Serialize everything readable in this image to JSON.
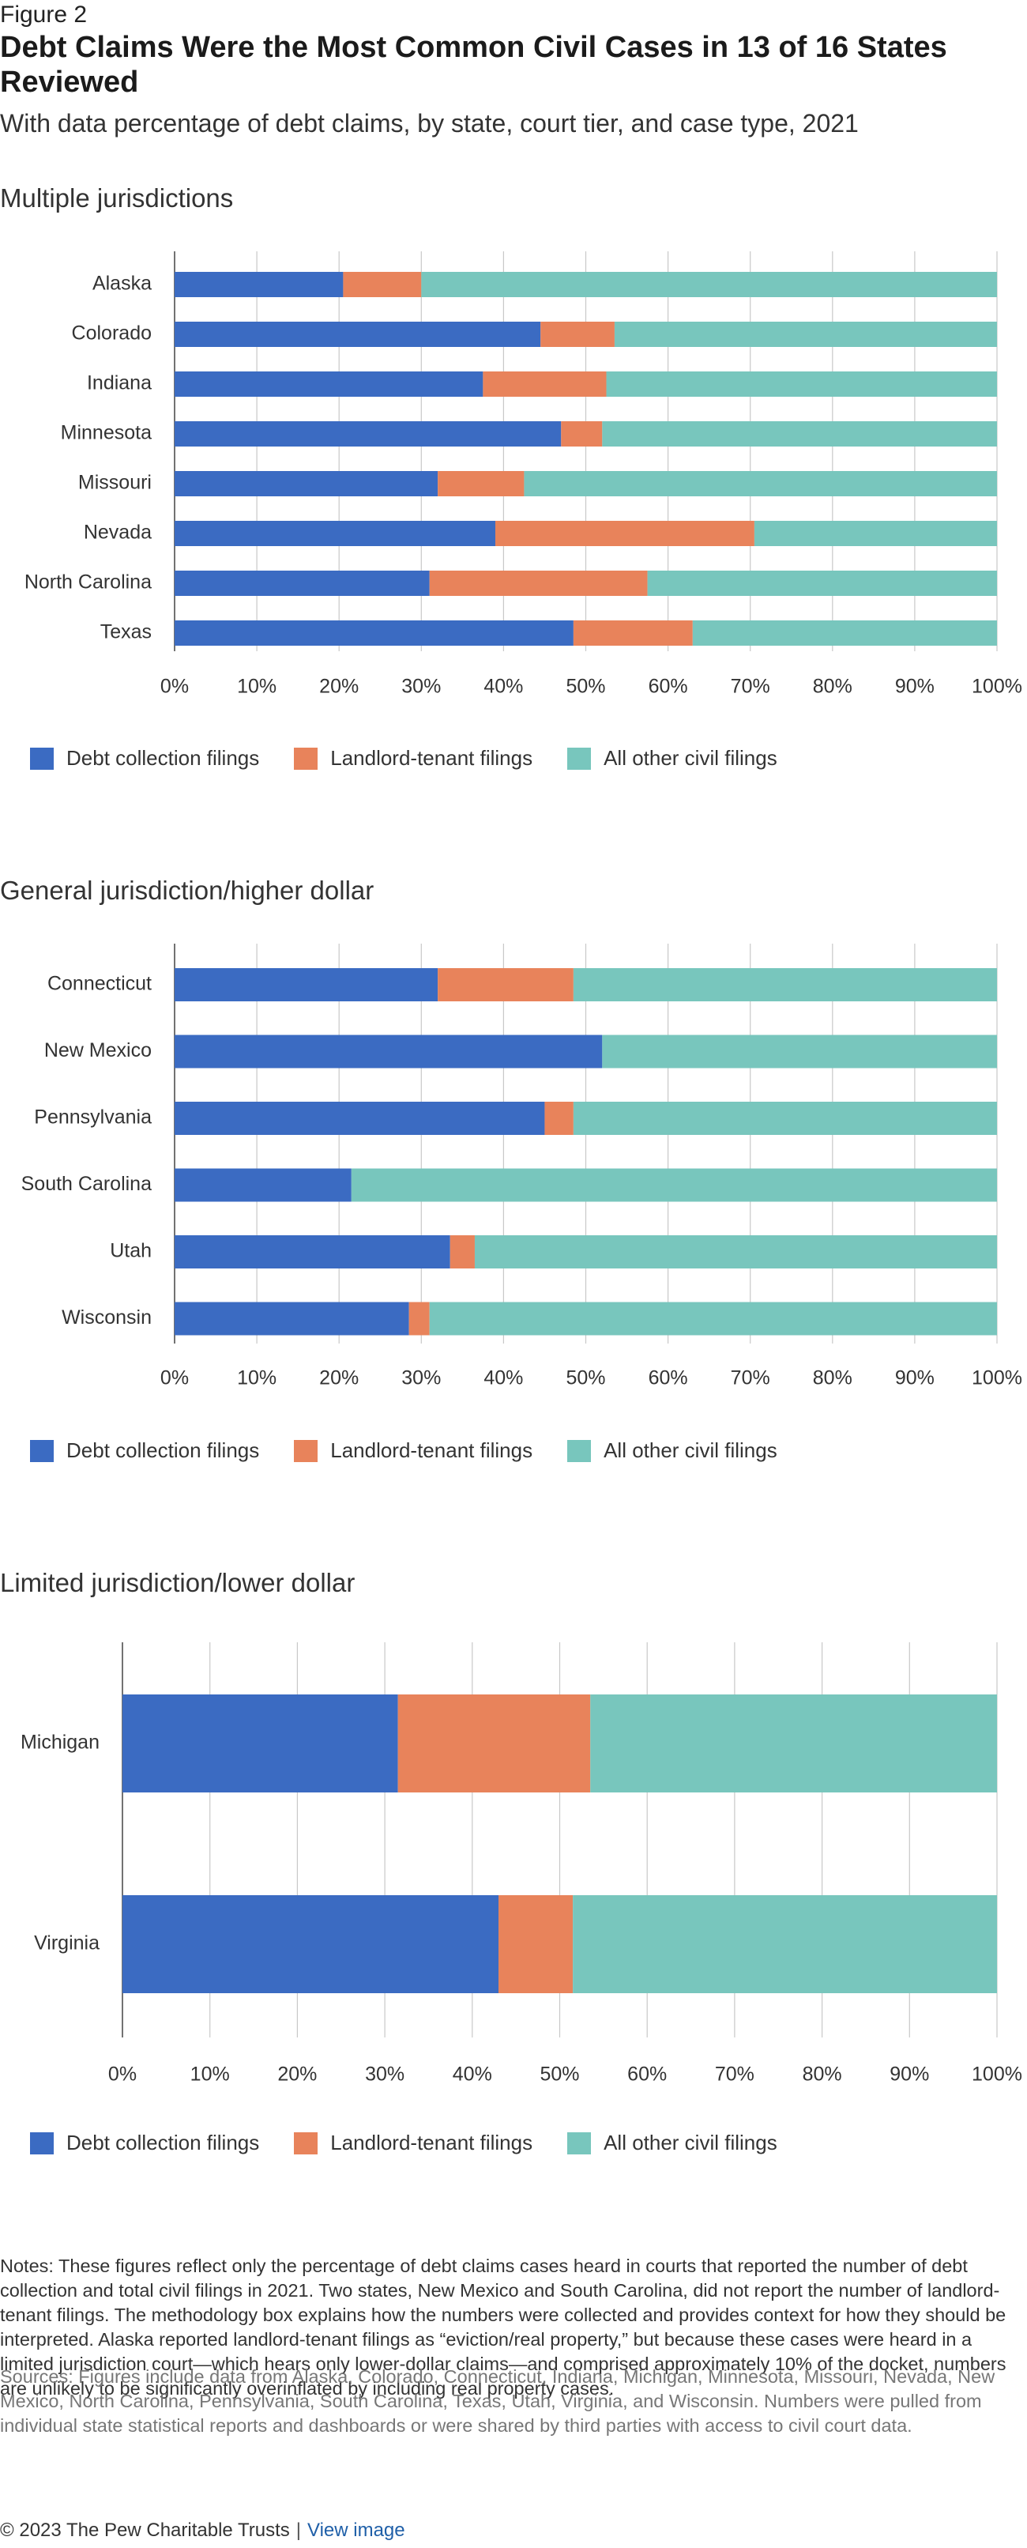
{
  "figure_label": "Figure 2",
  "title": "Debt Claims Were the Most Common Civil Cases in 13 of 16 States Reviewed",
  "subtitle": "With data percentage of debt claims, by state, court tier, and case type, 2021",
  "colors": {
    "debt": "#3b6bc2",
    "landlord": "#e8835b",
    "other": "#78c6bd",
    "grid": "#c8c8c8",
    "axis": "#444444"
  },
  "legend": {
    "debt": "Debt collection filings",
    "landlord": "Landlord-tenant filings",
    "other": "All other civil filings"
  },
  "chart_data": [
    {
      "type": "bar",
      "orientation": "horizontal",
      "stacked": true,
      "title": "Multiple jurisdictions",
      "categories": [
        "Alaska",
        "Colorado",
        "Indiana",
        "Minnesota",
        "Missouri",
        "Nevada",
        "North Carolina",
        "Texas"
      ],
      "series": [
        {
          "name": "Debt collection filings",
          "values": [
            20.5,
            44.5,
            37.5,
            47,
            32,
            39,
            31,
            48.5
          ]
        },
        {
          "name": "Landlord-tenant filings",
          "values": [
            9.5,
            9,
            15,
            5,
            10.5,
            31.5,
            26.5,
            14.5
          ]
        },
        {
          "name": "All other civil filings",
          "values": [
            70,
            46.5,
            47.5,
            48,
            57.5,
            29.5,
            42.5,
            37
          ]
        }
      ],
      "xlim": [
        0,
        100
      ],
      "xticks": [
        "0%",
        "10%",
        "20%",
        "30%",
        "40%",
        "50%",
        "60%",
        "70%",
        "80%",
        "90%",
        "100%"
      ],
      "grid": true,
      "legend_position": "bottom"
    },
    {
      "type": "bar",
      "orientation": "horizontal",
      "stacked": true,
      "title": "General jurisdiction/higher dollar",
      "categories": [
        "Connecticut",
        "New Mexico",
        "Pennsylvania",
        "South Carolina",
        "Utah",
        "Wisconsin"
      ],
      "series": [
        {
          "name": "Debt collection filings",
          "values": [
            32,
            52,
            45,
            21.5,
            33.5,
            28.5
          ]
        },
        {
          "name": "Landlord-tenant filings",
          "values": [
            16.5,
            0,
            3.5,
            0,
            3,
            2.5
          ]
        },
        {
          "name": "All other civil filings",
          "values": [
            51.5,
            48,
            51.5,
            78.5,
            63.5,
            69
          ]
        }
      ],
      "xlim": [
        0,
        100
      ],
      "xticks": [
        "0%",
        "10%",
        "20%",
        "30%",
        "40%",
        "50%",
        "60%",
        "70%",
        "80%",
        "90%",
        "100%"
      ],
      "grid": true,
      "legend_position": "bottom"
    },
    {
      "type": "bar",
      "orientation": "horizontal",
      "stacked": true,
      "title": "Limited jurisdiction/lower dollar",
      "categories": [
        "Michigan",
        "Virginia"
      ],
      "series": [
        {
          "name": "Debt collection filings",
          "values": [
            31.5,
            43
          ]
        },
        {
          "name": "Landlord-tenant filings",
          "values": [
            22,
            8.5
          ]
        },
        {
          "name": "All other civil filings",
          "values": [
            46.5,
            48.5
          ]
        }
      ],
      "xlim": [
        0,
        100
      ],
      "xticks": [
        "0%",
        "10%",
        "20%",
        "30%",
        "40%",
        "50%",
        "60%",
        "70%",
        "80%",
        "90%",
        "100%"
      ],
      "grid": true,
      "legend_position": "bottom"
    }
  ],
  "notes": "Notes: These figures reflect only the percentage of debt claims cases heard in courts that reported the number of debt collection and total civil filings in 2021. Two states, New Mexico and South Carolina, did not report the number of landlord-tenant filings. The methodology box explains how the numbers were collected and provides context for how they should be interpreted. Alaska reported landlord-tenant filings as “eviction/real property,” but because these cases were heard in a limited jurisdiction court—which hears only lower-dollar claims—and comprised approximately 10% of the docket, numbers are unlikely to be significantly overinflated by including real property cases.",
  "sources": "Sources: Figures include data from Alaska, Colorado, Connecticut, Indiana, Michigan, Minnesota, Missouri, Nevada, New Mexico, North Carolina, Pennsylvania, South Carolina, Texas, Utah, Virginia, and Wisconsin. Numbers were pulled from individual state statistical reports and dashboards or were shared by third parties with access to civil court data.",
  "footer": {
    "copyright": "© 2023 The Pew Charitable Trusts",
    "separator": "|",
    "link": "View image"
  }
}
